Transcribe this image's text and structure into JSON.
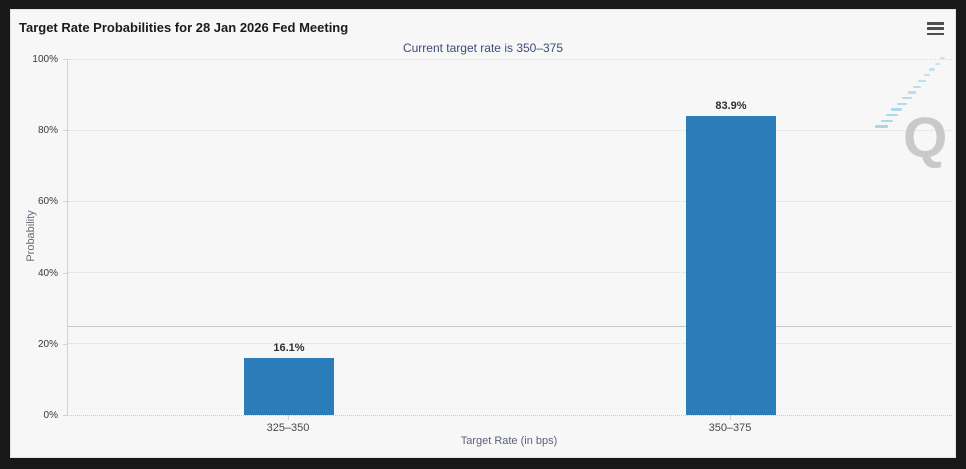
{
  "header": {
    "title": "Target Rate Probabilities for 28 Jan 2026 Fed Meeting",
    "subtitle": "Current target rate is 350–375"
  },
  "toolbar": {
    "menu_icon": "hamburger-menu"
  },
  "chart_data": {
    "type": "bar",
    "title": "Target Rate Probabilities for 28 Jan 2026 Fed Meeting",
    "subtitle": "Current target rate is 350–375",
    "categories": [
      "325–350",
      "350–375"
    ],
    "values": [
      16.1,
      83.9
    ],
    "data_labels": [
      "16.1%",
      "83.9%"
    ],
    "xlabel": "Target Rate (in bps)",
    "ylabel": "Probability",
    "ylim": [
      0,
      100
    ],
    "ytick_step": 20,
    "ytick_labels": [
      "0%",
      "20%",
      "40%",
      "60%",
      "80%",
      "100%"
    ],
    "reference_line_value": 25,
    "grid": "dotted-horizontal",
    "legend": "none",
    "bar_color": "#2a7db8"
  },
  "watermark": {
    "letter": "Q",
    "icon": "q-logo-swoosh"
  },
  "colors": {
    "frame": "#181818",
    "card_bg": "#f7f7f7",
    "bar": "#2a7db8",
    "subtitle_text": "#3d4d77",
    "gridline": "#d9d9de",
    "reference_line": "#c8c8c8",
    "axis_line": "#cdd3de"
  }
}
